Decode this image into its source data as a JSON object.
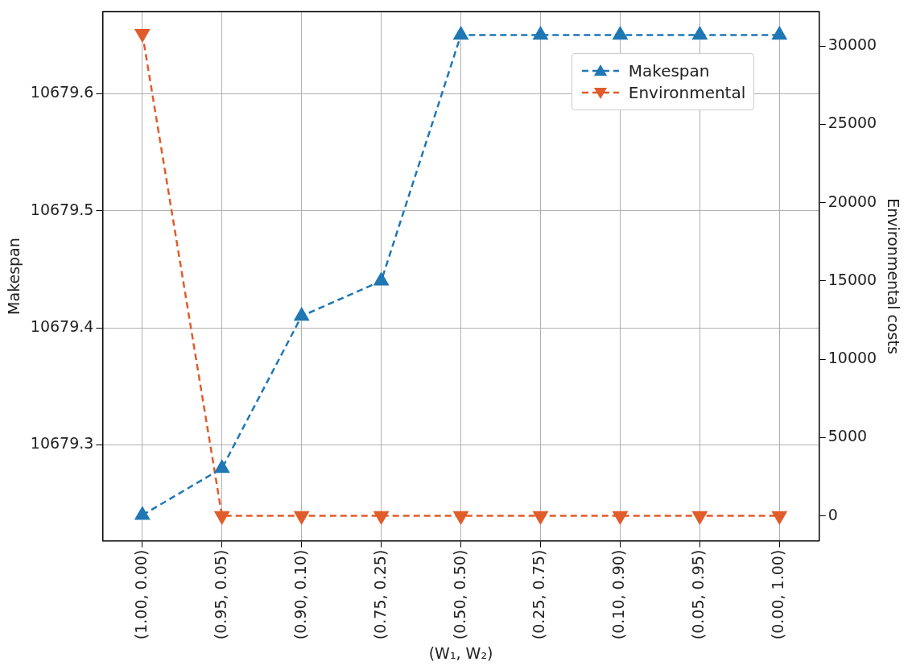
{
  "chart_data": {
    "type": "line",
    "xlabel": "(W₁, W₂)",
    "ylabel": "Makespan",
    "y2label": "Environmental costs",
    "categories": [
      "(1.00, 0.00)",
      "(0.95, 0.05)",
      "(0.90, 0.10)",
      "(0.75, 0.25)",
      "(0.50, 0.50)",
      "(0.25, 0.75)",
      "(0.10, 0.90)",
      "(0.05, 0.95)",
      "(0.00, 1.00)"
    ],
    "series": [
      {
        "name": "Makespan",
        "color": "#1f77b4",
        "marker": "triangle",
        "values": [
          10679.24,
          10679.28,
          10679.41,
          10679.44,
          10679.65,
          10679.65,
          10679.65,
          10679.65,
          10679.65
        ]
      },
      {
        "name": "Environmental",
        "color": "#e05c2a",
        "marker": "triangle-down",
        "axis": "y2",
        "values": [
          30800,
          0,
          0,
          0,
          0,
          0,
          0,
          0,
          0
        ]
      }
    ],
    "ylim": [
      10679.218,
      10679.67
    ],
    "yticks": [
      10679.3,
      10679.4,
      10679.5,
      10679.6
    ],
    "y2lim": [
      -1600,
      32200
    ],
    "y2ticks": [
      0,
      5000,
      10000,
      15000,
      20000,
      25000,
      30000
    ],
    "grid": true,
    "legend": "top right",
    "line_style": "dashed"
  }
}
